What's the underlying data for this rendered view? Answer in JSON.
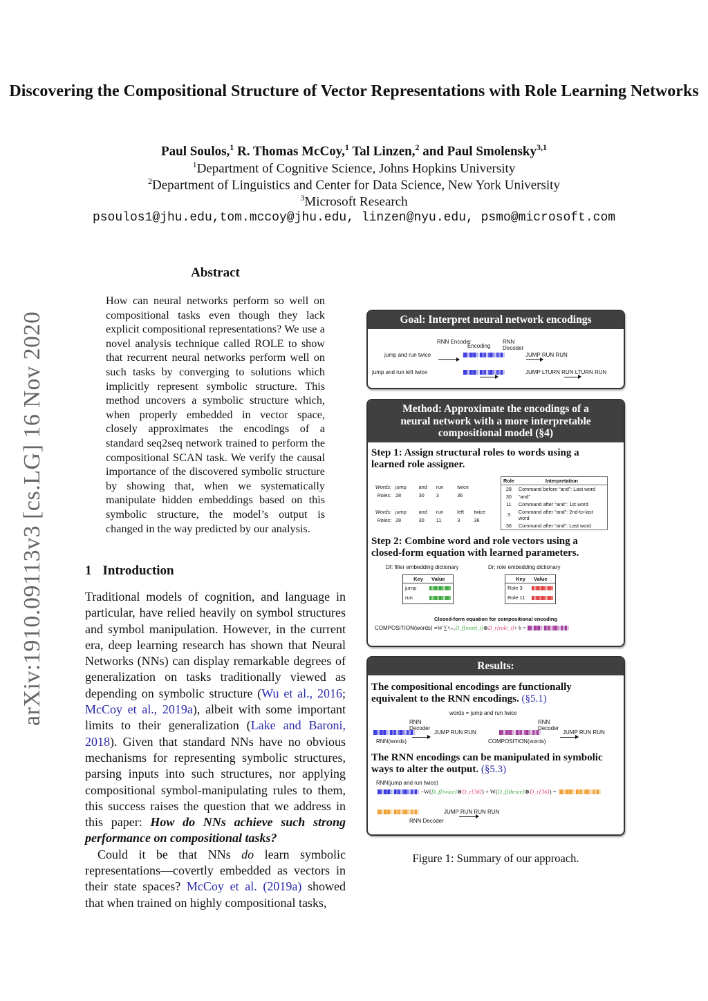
{
  "title": "Discovering the Compositional Structure of Vector Representations with Role Learning Networks",
  "authors": [
    {
      "name": "Paul Soulos,",
      "sup": "1"
    },
    {
      "name": " R. Thomas McCoy,",
      "sup": "1"
    },
    {
      "name": " Tal Linzen,",
      "sup": "2"
    },
    {
      "name": " and Paul Smolensky",
      "sup": "3,1"
    }
  ],
  "affiliations": [
    {
      "sup": "1",
      "text": "Department of Cognitive Science, Johns Hopkins University"
    },
    {
      "sup": "2",
      "text": "Department of Linguistics and Center for Data Science, New York University"
    },
    {
      "sup": "3",
      "text": "Microsoft Research"
    }
  ],
  "emails": "psoulos1@jhu.edu,tom.mccoy@jhu.edu, linzen@nyu.edu, psmo@microsoft.com",
  "arxiv_stamp": "arXiv:1910.09113v3  [cs.LG]  16 Nov 2020",
  "abstract": {
    "heading": "Abstract",
    "text": "How can neural networks perform so well on compositional tasks even though they lack explicit compositional representations? We use a novel analysis technique called ROLE to show that recurrent neural networks perform well on such tasks by converging to solutions which implicitly represent symbolic structure. This method uncovers a symbolic structure which, when properly embedded in vector space, closely approximates the encodings of a standard seq2seq network trained to perform the compositional SCAN task. We verify the causal importance of the discovered symbolic structure by showing that, when we systematically manipulate hidden embeddings based on this symbolic structure, the model’s output is changed in the way predicted by our analysis."
  },
  "intro": {
    "number": "1",
    "heading": "Introduction",
    "p1": [
      "Traditional models of cognition, and language in particular, have relied heavily on symbol structures and symbol manipulation. However, in the current era, deep learning research has shown that Neural Networks (NNs) can display remarkable degrees of generalization on tasks traditionally viewed as depending on symbolic structure (",
      "Wu et al., 2016",
      "; ",
      "McCoy et al., 2019a",
      "), albeit with some important limits to their generalization (",
      "Lake and Baroni, 2018",
      "). Given that standard NNs have no obvious mechanisms for representing symbolic structures, parsing inputs into such structures, nor applying compositional symbol-manipulating rules to them, this success raises the question that we address in this paper: ",
      "How do NNs achieve such strong performance on compositional tasks?"
    ],
    "p2": [
      "Could it be that NNs ",
      "do",
      " learn symbolic representations—covertly embedded as vectors in their state spaces? ",
      "McCoy et al. (2019a)",
      " showed that when trained on highly compositional tasks,"
    ]
  },
  "figure": {
    "colors": {
      "rnn": "#3a3ae0",
      "filler": "#3aa63a",
      "role": "#e03a3a",
      "composition": "#a03a9a",
      "manipulated": "#f0a030",
      "header": "#404040"
    },
    "goal": {
      "heading": "Goal:  Interpret neural network encodings",
      "encoder": "RNN Encoder",
      "encoding": "Encoding",
      "decoder": "RNN Decoder",
      "rows": [
        {
          "input": "jump and run twice",
          "output": "JUMP RUN RUN"
        },
        {
          "input": "jump and run left twice",
          "output": "JUMP LTURN RUN LTURN RUN"
        }
      ]
    },
    "method": {
      "heading": "Method:  Approximate the encodings of a neural network with a more interpretable compositional model (§4)",
      "step1": "Step 1:  Assign structural roles to words using a learned role assigner.",
      "words_label": "Words:",
      "roles_label": "Roles:",
      "ex1": {
        "words": [
          "jump",
          "and",
          "run",
          "twice"
        ],
        "roles": [
          "28",
          "30",
          "3",
          "36"
        ]
      },
      "ex2": {
        "words": [
          "jump",
          "and",
          "run",
          "left",
          "twice"
        ],
        "roles": [
          "28",
          "30",
          "11",
          "3",
          "36"
        ]
      },
      "role_table": {
        "headers": [
          "Role",
          "Interpretation"
        ],
        "rows": [
          [
            "28",
            "Command before “and”: Last word"
          ],
          [
            "30",
            "“and”"
          ],
          [
            "11",
            "Command after “and”: 1st word"
          ],
          [
            "3",
            "Command after “and”: 2nd-to-last word"
          ],
          [
            "36",
            "Command after “and”: Last word"
          ]
        ]
      },
      "step2": "Step 2:  Combine word and role vectors using a closed-form equation with learned parameters.",
      "filler_dict": {
        "label": "Df: filler embedding dictionary",
        "headers": [
          "Key",
          "Value"
        ],
        "keys": [
          "jump",
          "run"
        ],
        "more": "..."
      },
      "role_dict": {
        "label": "Dr: role embedding dictionary",
        "headers": [
          "Key",
          "Value"
        ],
        "keys": [
          "Role 3",
          "Role 11"
        ],
        "more": "..."
      },
      "eq_title": "Closed-form equation for compositional encoding",
      "eq_lhs": "COMPOSITION(words) = ",
      "eq_sum": "W ∑ⁿᵢ₌₁ ",
      "eq_df": "D_f[word_i]",
      "eq_otimes": " ⊗ ",
      "eq_dr": "D_r[role_i]",
      "eq_rest": " + b ="
    },
    "results": {
      "heading": "Results:",
      "r1": "The compositional encodings are functionally equivalent to the RNN encodings.",
      "r1_ref": "(§5.1)",
      "words_eq": "words = jump and run twice",
      "decoder": "RNN Decoder",
      "output": "JUMP RUN RUN",
      "rnn_words": "RNN(words)",
      "comp_words": "COMPOSITION(words)",
      "r2": "The RNN encodings can be manipulated in symbolic ways to alter the output.",
      "r2_ref": "(§5.3)",
      "rnn_input": "RNN(jump and run twice)",
      "eq_a": "−W(",
      "eq_twice": "D_f[twice]",
      "eq_b": " ⊗ ",
      "eq_r36": "D_r[36]",
      "eq_c": ") + W(",
      "eq_thrice": "D_f[thrice]",
      "eq_d": ") =",
      "output2": "JUMP RUN RUN RUN",
      "decoder2": "RNN Decoder"
    }
  },
  "caption": "Figure 1: Summary of our approach."
}
